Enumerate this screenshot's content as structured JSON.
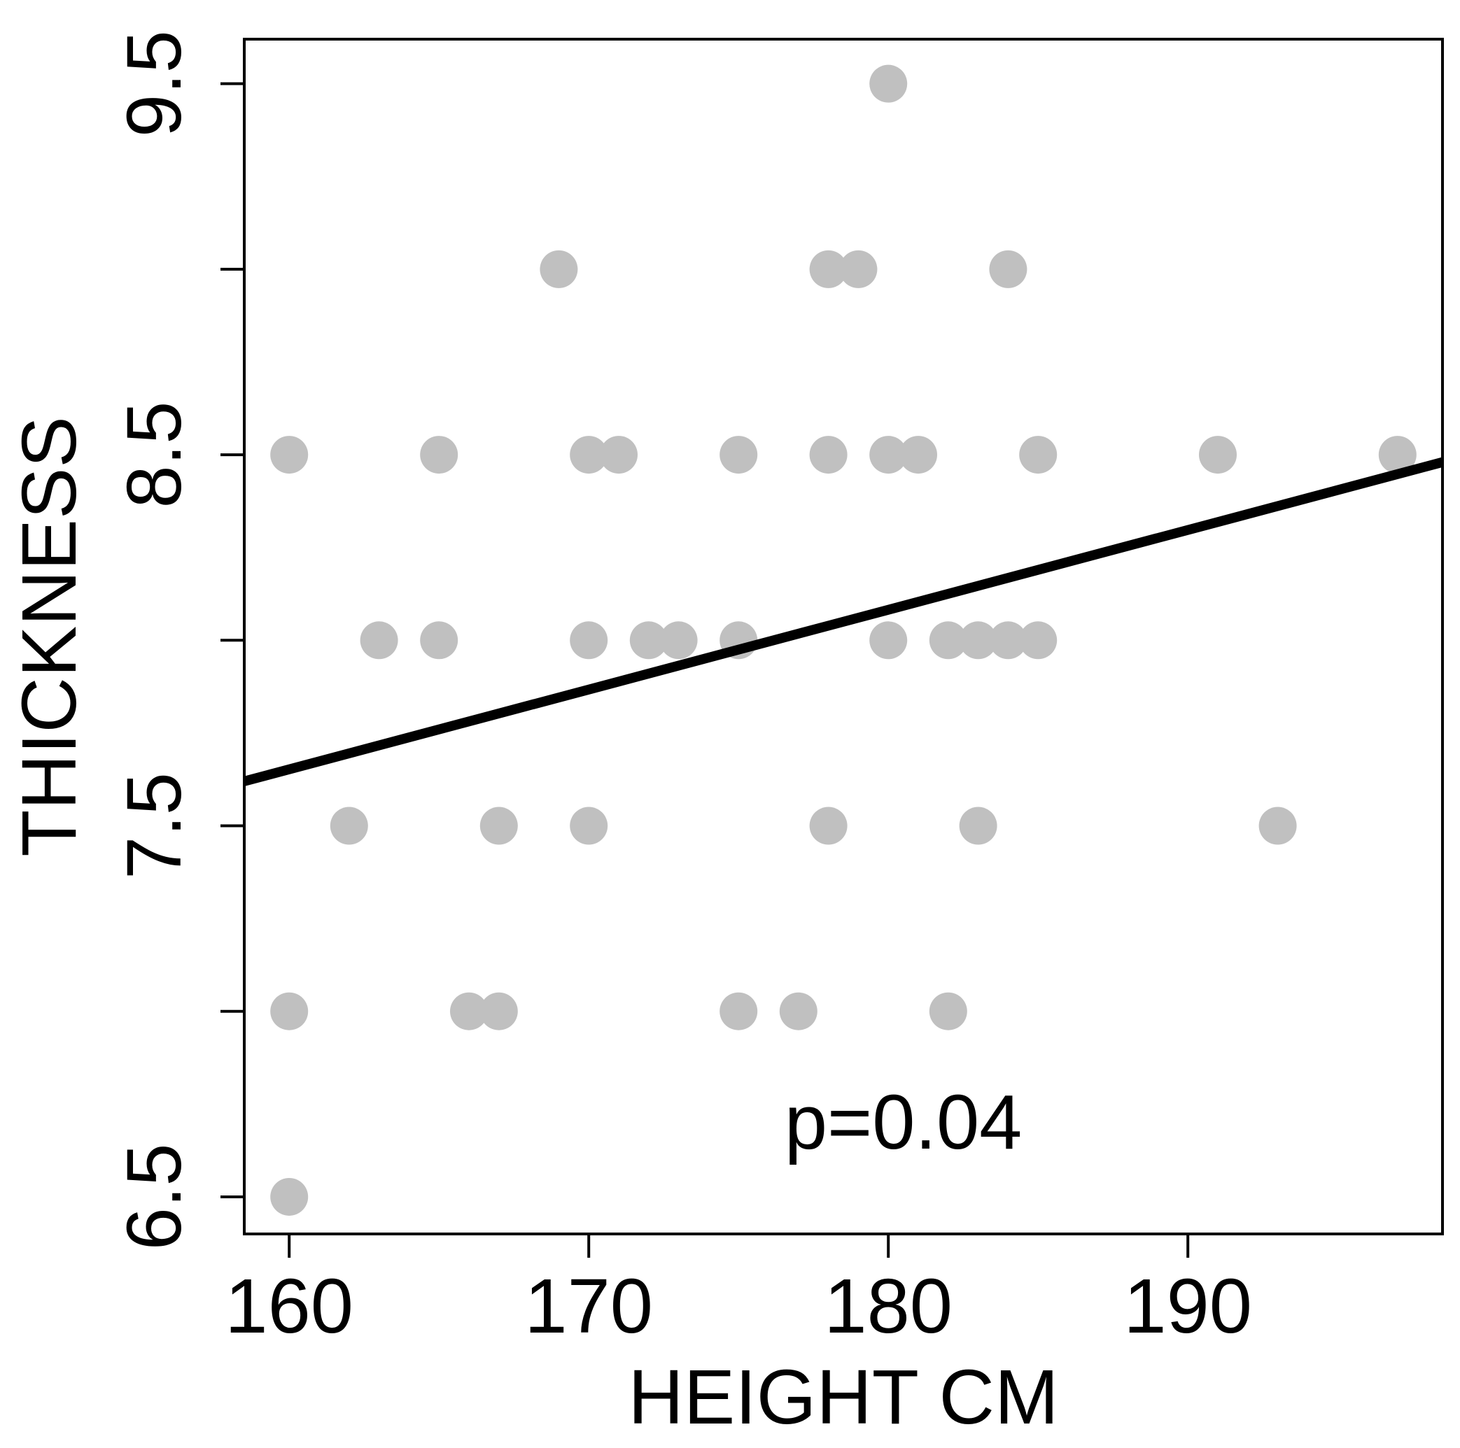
{
  "chart_data": {
    "type": "scatter",
    "title": "",
    "xlabel": "HEIGHT CM",
    "ylabel": "THICKNESS",
    "xlim": [
      158.5,
      198.5
    ],
    "ylim": [
      6.4,
      9.62
    ],
    "x_ticks": [
      160,
      170,
      180,
      190
    ],
    "x_tick_labels": [
      "160",
      "170",
      "180",
      "190"
    ],
    "y_ticks": [
      6.5,
      7.0,
      7.5,
      8.0,
      8.5,
      9.0,
      9.5
    ],
    "y_tick_labels": [
      "6.5",
      "",
      "7.5",
      "",
      "8.5",
      "",
      "9.5"
    ],
    "annotation": "p=0.04",
    "annotation_pos": {
      "x": 180.5,
      "y": 6.63
    },
    "point_color": "#c0c0c0",
    "line_color": "#000000",
    "regression_line": {
      "x": [
        158.5,
        198.5
      ],
      "y": [
        7.62,
        8.48
      ]
    },
    "points": [
      {
        "x": 160,
        "y": 8.5
      },
      {
        "x": 165,
        "y": 8.5
      },
      {
        "x": 170,
        "y": 8.5
      },
      {
        "x": 171,
        "y": 8.5
      },
      {
        "x": 175,
        "y": 8.5
      },
      {
        "x": 178,
        "y": 8.5
      },
      {
        "x": 180,
        "y": 8.5
      },
      {
        "x": 181,
        "y": 8.5
      },
      {
        "x": 185,
        "y": 8.5
      },
      {
        "x": 191,
        "y": 8.5
      },
      {
        "x": 197,
        "y": 8.5
      },
      {
        "x": 180,
        "y": 9.5
      },
      {
        "x": 169,
        "y": 9.0
      },
      {
        "x": 178,
        "y": 9.0
      },
      {
        "x": 179,
        "y": 9.0
      },
      {
        "x": 184,
        "y": 9.0
      },
      {
        "x": 163,
        "y": 8.0
      },
      {
        "x": 165,
        "y": 8.0
      },
      {
        "x": 170,
        "y": 8.0
      },
      {
        "x": 172,
        "y": 8.0
      },
      {
        "x": 173,
        "y": 8.0
      },
      {
        "x": 175,
        "y": 8.0
      },
      {
        "x": 180,
        "y": 8.0
      },
      {
        "x": 182,
        "y": 8.0
      },
      {
        "x": 183,
        "y": 8.0
      },
      {
        "x": 184,
        "y": 8.0
      },
      {
        "x": 185,
        "y": 8.0
      },
      {
        "x": 162,
        "y": 7.5
      },
      {
        "x": 167,
        "y": 7.5
      },
      {
        "x": 170,
        "y": 7.5
      },
      {
        "x": 178,
        "y": 7.5
      },
      {
        "x": 183,
        "y": 7.5
      },
      {
        "x": 193,
        "y": 7.5
      },
      {
        "x": 160,
        "y": 7.0
      },
      {
        "x": 166,
        "y": 7.0
      },
      {
        "x": 167,
        "y": 7.0
      },
      {
        "x": 175,
        "y": 7.0
      },
      {
        "x": 177,
        "y": 7.0
      },
      {
        "x": 182,
        "y": 7.0
      },
      {
        "x": 160,
        "y": 6.5
      }
    ]
  }
}
